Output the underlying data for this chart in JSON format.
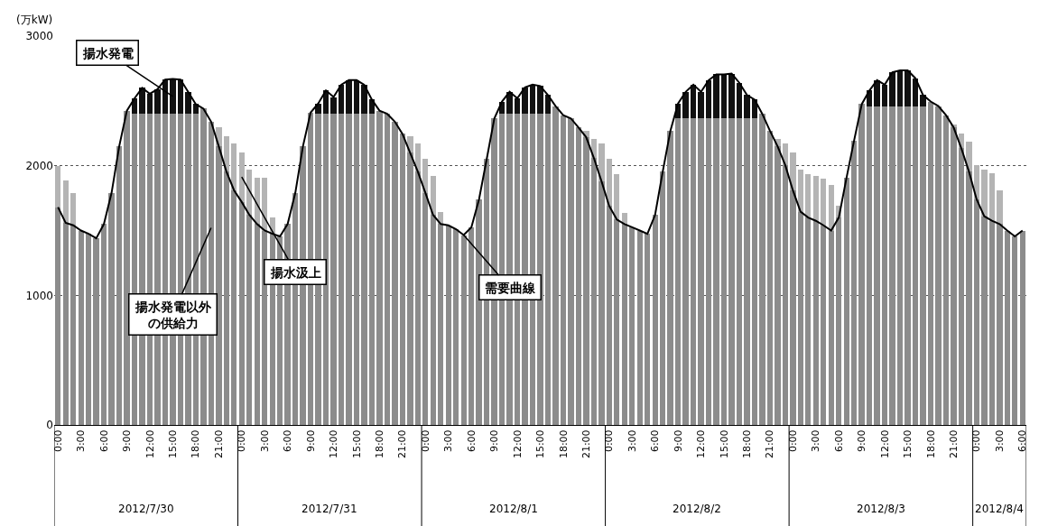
{
  "chart_data": {
    "type": "bar",
    "stacked": true,
    "legend": false,
    "grid": "y",
    "ylabel": "(万kW)",
    "ylim": [
      0,
      3000
    ],
    "yticks": [
      0,
      1000,
      2000,
      3000
    ],
    "categories": [
      "0:00",
      null,
      null,
      "3:00",
      null,
      null,
      "6:00",
      null,
      null,
      "9:00",
      null,
      null,
      "12:00",
      null,
      null,
      "15:00",
      null,
      null,
      "18:00",
      null,
      null,
      "21:00",
      null,
      null,
      "0:00",
      null,
      null,
      "3:00",
      null,
      null,
      "6:00",
      null,
      null,
      "9:00",
      null,
      null,
      "12:00",
      null,
      null,
      "15:00",
      null,
      null,
      "18:00",
      null,
      null,
      "21:00",
      null,
      null,
      "0:00",
      null,
      null,
      "3:00",
      null,
      null,
      "6:00",
      null,
      null,
      "9:00",
      null,
      null,
      "12:00",
      null,
      null,
      "15:00",
      null,
      null,
      "18:00",
      null,
      null,
      "21:00",
      null,
      null,
      "0:00",
      null,
      null,
      "3:00",
      null,
      null,
      "6:00",
      null,
      null,
      "9:00",
      null,
      null,
      "12:00",
      null,
      null,
      "15:00",
      null,
      null,
      "18:00",
      null,
      null,
      "21:00",
      null,
      null,
      "0:00",
      null,
      null,
      "3:00",
      null,
      null,
      "6:00",
      null,
      null,
      "9:00",
      null,
      null,
      "12:00",
      null,
      null,
      "15:00",
      null,
      null,
      "18:00",
      null,
      null,
      "21:00",
      null,
      null,
      "0:00",
      null,
      null,
      "3:00",
      null,
      null,
      "6:00"
    ],
    "series": [
      {
        "name": "揚水発電以外の供給力",
        "color": "#8c8c8c",
        "values": [
          1680,
          1560,
          1540,
          1500,
          1475,
          1440,
          1550,
          1790,
          2150,
          2425,
          2400,
          2400,
          2400,
          2400,
          2400,
          2400,
          2400,
          2400,
          2400,
          2440,
          2340,
          2150,
          1955,
          1810,
          1720,
          1620,
          1550,
          1500,
          1475,
          1455,
          1550,
          1790,
          2150,
          2410,
          2400,
          2400,
          2400,
          2400,
          2400,
          2400,
          2400,
          2400,
          2425,
          2400,
          2340,
          2245,
          2100,
          1955,
          1790,
          1620,
          1550,
          1540,
          1510,
          1465,
          1525,
          1740,
          2050,
          2365,
          2400,
          2400,
          2400,
          2400,
          2400,
          2400,
          2400,
          2460,
          2390,
          2365,
          2295,
          2220,
          2060,
          1880,
          1690,
          1585,
          1550,
          1525,
          1500,
          1475,
          1620,
          1955,
          2270,
          2370,
          2370,
          2370,
          2370,
          2370,
          2370,
          2370,
          2370,
          2370,
          2370,
          2370,
          2400,
          2270,
          2150,
          2005,
          1810,
          1645,
          1600,
          1575,
          1540,
          1500,
          1600,
          1905,
          2195,
          2475,
          2460,
          2460,
          2460,
          2460,
          2460,
          2460,
          2460,
          2460,
          2495,
          2460,
          2390,
          2295,
          2135,
          1955,
          1740,
          1610,
          1575,
          1550,
          1500,
          1455,
          1500
        ]
      },
      {
        "name": "揚水発電",
        "color": "#111111",
        "values": [
          null,
          null,
          null,
          null,
          null,
          null,
          null,
          null,
          null,
          null,
          120,
          200,
          155,
          190,
          265,
          270,
          265,
          170,
          75,
          null,
          null,
          null,
          null,
          null,
          null,
          null,
          null,
          null,
          null,
          null,
          null,
          null,
          null,
          null,
          80,
          180,
          130,
          225,
          260,
          260,
          225,
          110,
          null,
          null,
          null,
          null,
          null,
          null,
          null,
          null,
          null,
          null,
          null,
          null,
          null,
          null,
          null,
          null,
          95,
          170,
          120,
          205,
          225,
          215,
          145,
          null,
          null,
          null,
          null,
          null,
          null,
          null,
          null,
          null,
          null,
          null,
          null,
          null,
          null,
          null,
          null,
          110,
          200,
          255,
          200,
          290,
          335,
          335,
          340,
          270,
          175,
          140,
          null,
          null,
          null,
          null,
          null,
          null,
          null,
          null,
          null,
          null,
          null,
          null,
          null,
          null,
          120,
          200,
          165,
          260,
          275,
          275,
          215,
          85,
          null,
          null,
          null,
          null,
          null,
          null,
          null,
          null,
          null,
          null,
          null,
          null,
          null
        ]
      },
      {
        "name": "揚水汲上",
        "color": "#b4b4b4",
        "values": [
          320,
          325,
          250,
          null,
          null,
          null,
          null,
          null,
          null,
          null,
          null,
          null,
          null,
          null,
          null,
          null,
          null,
          null,
          null,
          null,
          null,
          150,
          275,
          360,
          385,
          350,
          355,
          405,
          125,
          null,
          null,
          null,
          null,
          null,
          null,
          null,
          null,
          null,
          null,
          null,
          null,
          null,
          null,
          null,
          null,
          null,
          130,
          215,
          260,
          300,
          95,
          null,
          null,
          null,
          null,
          null,
          null,
          null,
          null,
          null,
          null,
          null,
          null,
          null,
          null,
          null,
          null,
          null,
          null,
          50,
          150,
          290,
          360,
          350,
          85,
          null,
          null,
          null,
          null,
          null,
          null,
          null,
          null,
          null,
          null,
          null,
          null,
          null,
          null,
          null,
          null,
          null,
          null,
          null,
          60,
          165,
          290,
          325,
          335,
          345,
          360,
          350,
          90,
          null,
          null,
          null,
          null,
          null,
          null,
          null,
          null,
          null,
          null,
          null,
          null,
          null,
          null,
          20,
          110,
          230,
          265,
          360,
          370,
          260,
          null,
          null,
          null
        ]
      },
      {
        "name": "需要曲線",
        "type": "line",
        "color": "#000000",
        "line_style": "solid",
        "values": [
          1680,
          1560,
          1540,
          1500,
          1475,
          1440,
          1550,
          1790,
          2150,
          2425,
          2520,
          2600,
          2555,
          2590,
          2665,
          2670,
          2665,
          2570,
          2475,
          2440,
          2340,
          2150,
          1955,
          1810,
          1720,
          1620,
          1550,
          1500,
          1475,
          1455,
          1550,
          1790,
          2150,
          2410,
          2480,
          2580,
          2530,
          2625,
          2660,
          2660,
          2625,
          2510,
          2425,
          2400,
          2340,
          2245,
          2100,
          1955,
          1790,
          1620,
          1550,
          1540,
          1510,
          1465,
          1525,
          1740,
          2050,
          2365,
          2495,
          2570,
          2520,
          2605,
          2625,
          2615,
          2545,
          2460,
          2390,
          2365,
          2295,
          2220,
          2060,
          1880,
          1690,
          1585,
          1550,
          1525,
          1500,
          1475,
          1620,
          1955,
          2270,
          2480,
          2570,
          2625,
          2570,
          2660,
          2705,
          2705,
          2710,
          2640,
          2545,
          2510,
          2400,
          2270,
          2150,
          2005,
          1810,
          1645,
          1600,
          1575,
          1540,
          1500,
          1600,
          1905,
          2195,
          2475,
          2580,
          2660,
          2625,
          2720,
          2735,
          2735,
          2675,
          2545,
          2495,
          2460,
          2390,
          2295,
          2135,
          1955,
          1740,
          1610,
          1575,
          1550,
          1500,
          1455,
          1500
        ]
      }
    ],
    "annotations": [
      "2012/7/30",
      "2012/7/31",
      "2012/8/1",
      "2012/8/2",
      "2012/8/3",
      "2012/8/4"
    ]
  }
}
